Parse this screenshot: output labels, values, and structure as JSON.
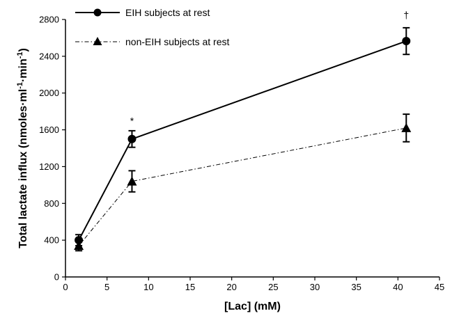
{
  "chart_data": {
    "type": "line",
    "xlabel": "[Lac] (mM)",
    "ylabel": "Total lactate influx (nmoles·ml-1·min-1)",
    "ylabel_parts": {
      "main": "Total lactate influx (nmoles·ml",
      "sup1": "-1",
      "mid": "·min",
      "sup2": "-1",
      "end": ")"
    },
    "xlim": [
      0,
      45
    ],
    "ylim": [
      0,
      2800
    ],
    "xticks": [
      0,
      5,
      10,
      15,
      20,
      25,
      30,
      35,
      40,
      45
    ],
    "yticks": [
      0,
      400,
      800,
      1200,
      1600,
      2000,
      2400,
      2800
    ],
    "grid": false,
    "legend_position": "top-left",
    "series": [
      {
        "name": "EIH subjects at rest",
        "marker": "circle",
        "line_style": "solid",
        "x": [
          1.6,
          8.0,
          41.0
        ],
        "y": [
          400,
          1500,
          2565
        ],
        "err": [
          60,
          90,
          145
        ]
      },
      {
        "name": "non-EIH subjects at rest",
        "marker": "triangle",
        "line_style": "dash-dot",
        "x": [
          1.6,
          8.0,
          41.0
        ],
        "y": [
          340,
          1040,
          1620
        ],
        "err": [
          55,
          115,
          150
        ]
      }
    ],
    "annotations": [
      {
        "text": "*",
        "x": 8.0,
        "y": 1700
      },
      {
        "text": "†",
        "x": 41.0,
        "y": 2850
      }
    ]
  }
}
